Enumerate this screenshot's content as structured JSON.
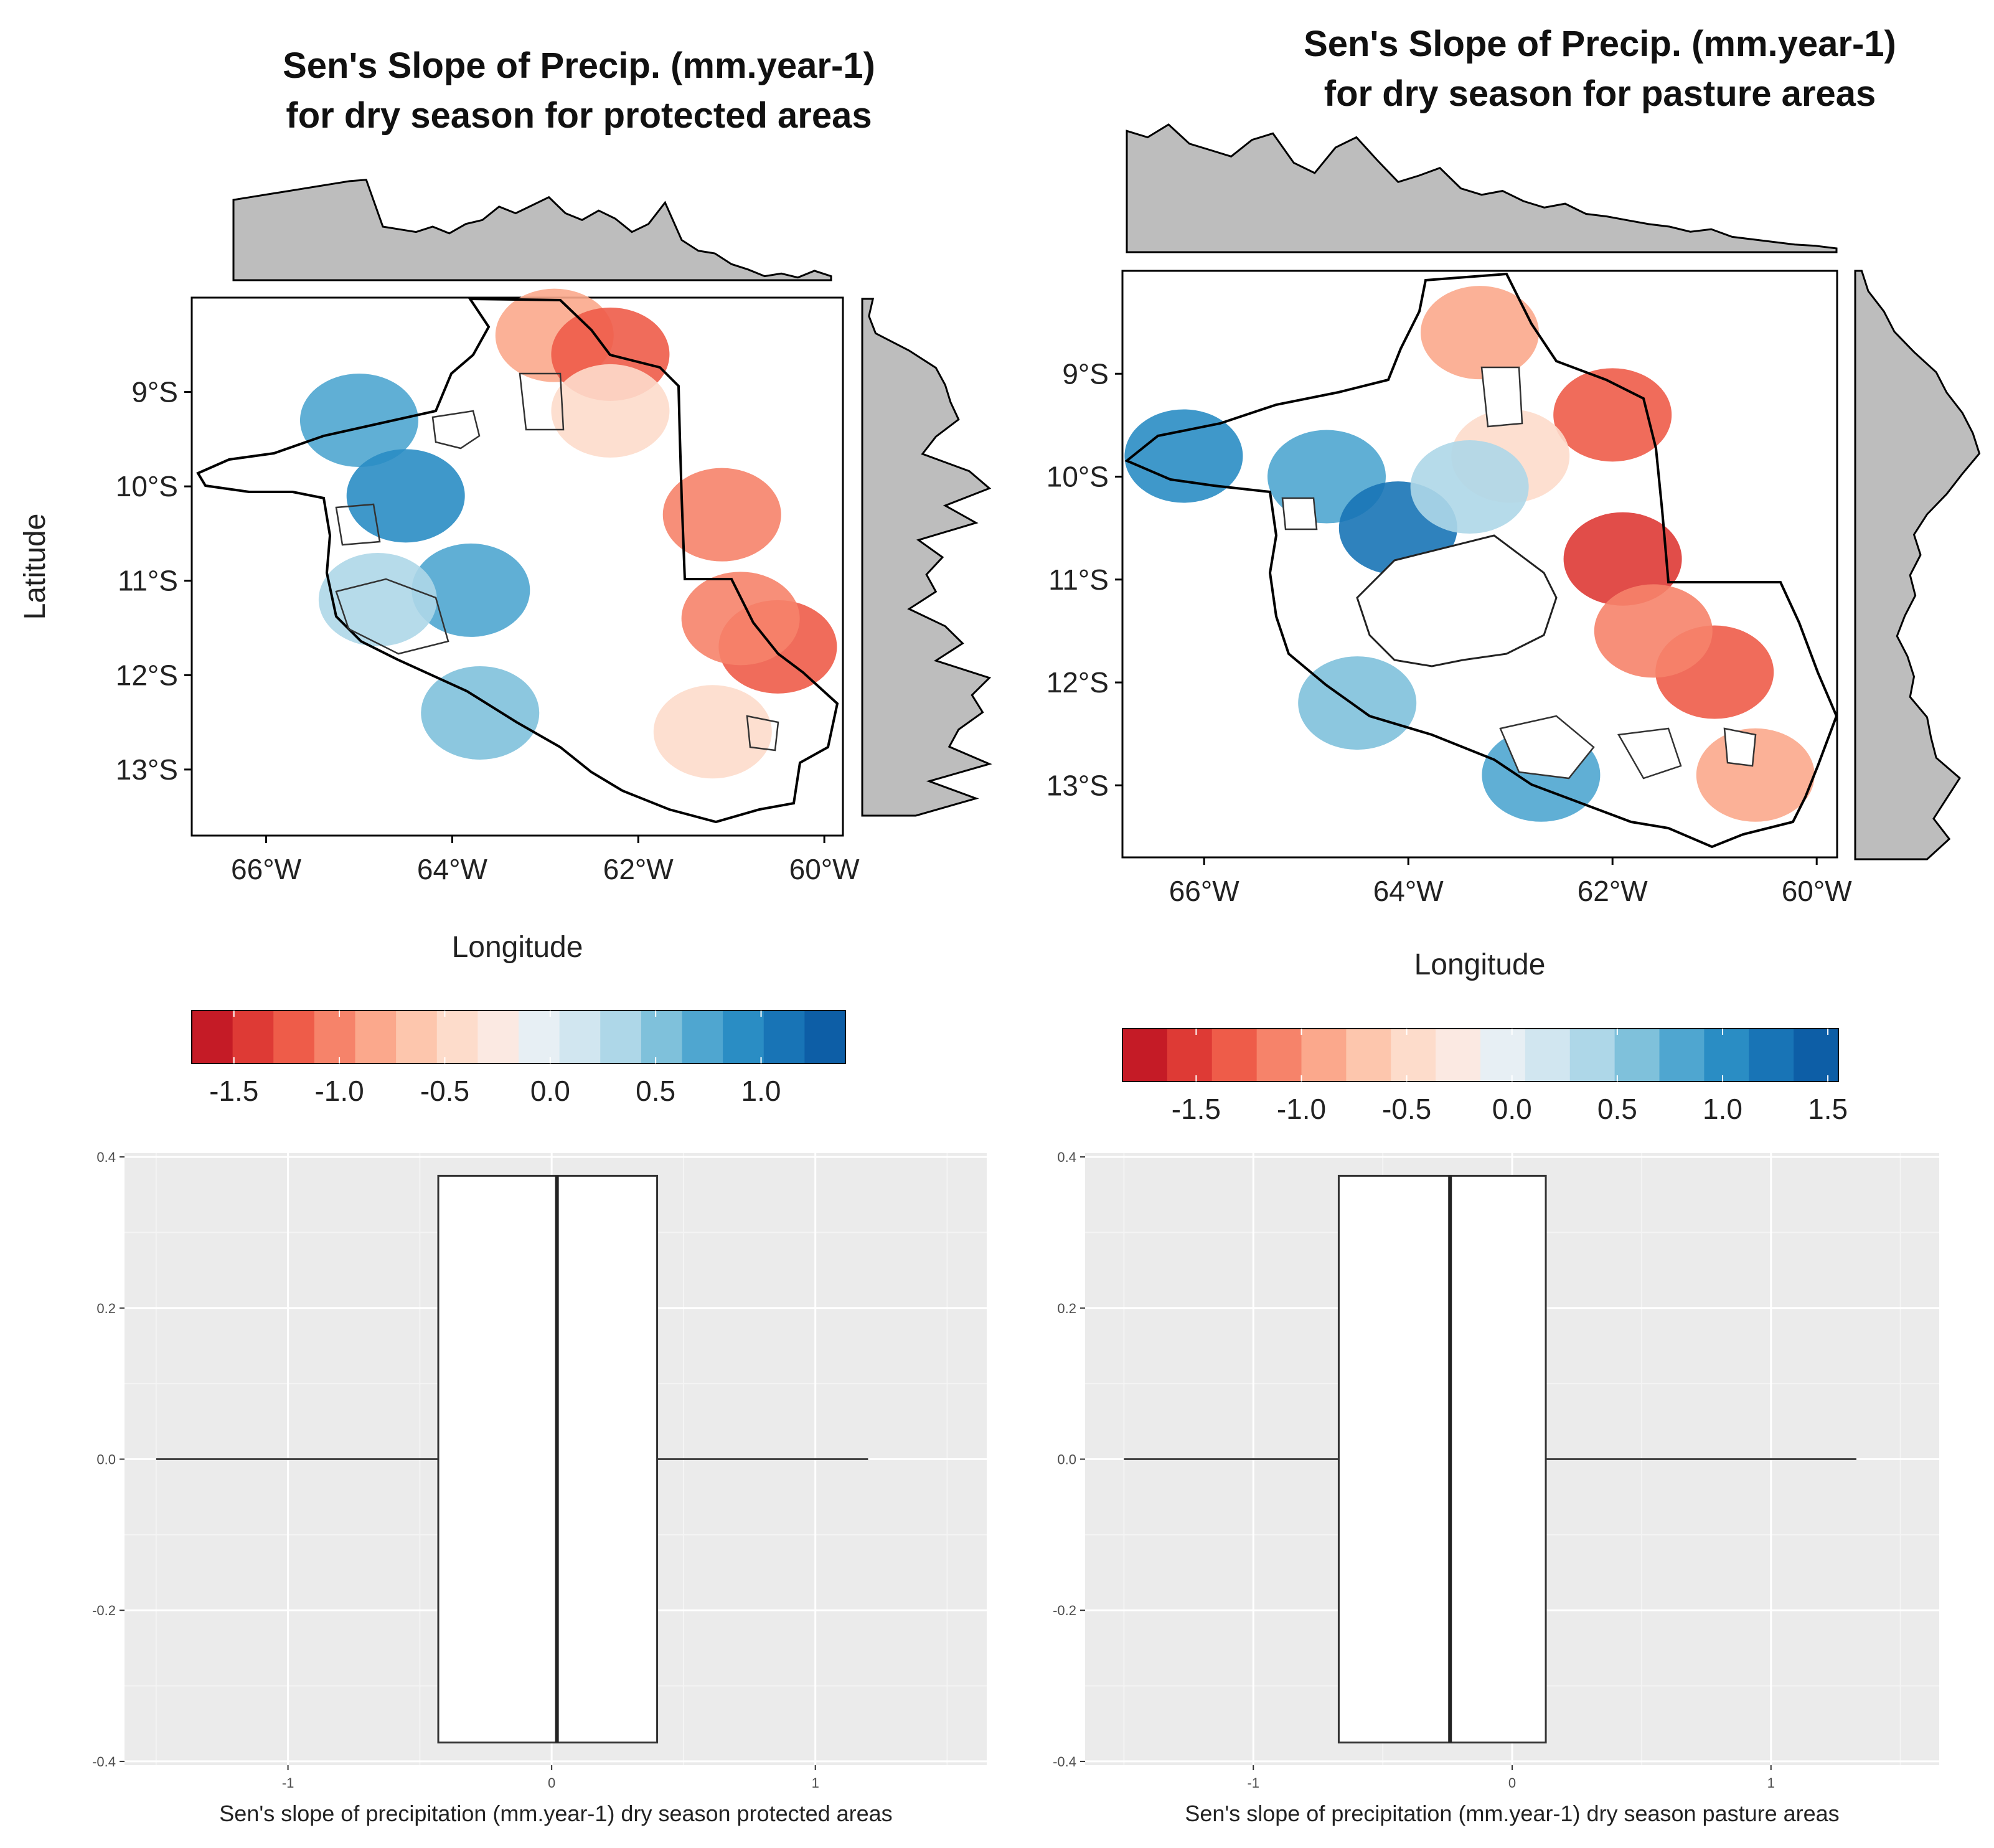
{
  "colors": {
    "scale": [
      "#c51b26",
      "#de3a35",
      "#ee5c49",
      "#f6836a",
      "#fba88c",
      "#fdc6ad",
      "#fddccb",
      "#fbe9e2",
      "#e7eff4",
      "#d1e6f0",
      "#aed7e8",
      "#7fc1db",
      "#4fa6d0",
      "#2a8dc4",
      "#1874b6",
      "#0d5ea6"
    ],
    "histogram_fill": "#bdbdbd",
    "boxplot_panel": "#ebebeb"
  },
  "chart_data": [
    {
      "type": "heatmap",
      "title": [
        "Sen's Slope of Precip. (mm.year-1)",
        "for dry season for protected areas"
      ],
      "xlabel": "Longitude",
      "ylabel": "Latitude",
      "x_ticks": [
        "66°W",
        "64°W",
        "62°W",
        "60°W"
      ],
      "x_tick_values": [
        -66,
        -64,
        -62,
        -60
      ],
      "y_ticks": [
        "9°S",
        "10°S",
        "11°S",
        "12°S",
        "13°S"
      ],
      "y_tick_values": [
        -9,
        -10,
        -11,
        -12,
        -13
      ],
      "xlim": [
        -66.8,
        -59.8
      ],
      "ylim": [
        -13.7,
        -8.0
      ],
      "colorbar_ticks": [
        "-1.5",
        "-1.0",
        "-0.5",
        "0.0",
        "0.5",
        "1.0"
      ],
      "colorbar_tick_values": [
        -1.5,
        -1.0,
        -0.5,
        0.0,
        0.5,
        1.0
      ],
      "colorbar_range": [
        -1.7,
        1.4
      ],
      "marginal_x_density": [
        0.6,
        0.62,
        0.64,
        0.66,
        0.68,
        0.7,
        0.72,
        0.74,
        0.75,
        0.4,
        0.38,
        0.36,
        0.4,
        0.35,
        0.42,
        0.45,
        0.55,
        0.5,
        0.56,
        0.62,
        0.5,
        0.45,
        0.52,
        0.46,
        0.36,
        0.42,
        0.58,
        0.3,
        0.22,
        0.2,
        0.12,
        0.08,
        0.03,
        0.05,
        0.02,
        0.07,
        0.03
      ],
      "marginal_y_density": [
        0.08,
        0.05,
        0.1,
        0.35,
        0.55,
        0.62,
        0.66,
        0.72,
        0.55,
        0.45,
        0.8,
        0.95,
        0.62,
        0.85,
        0.42,
        0.6,
        0.48,
        0.55,
        0.35,
        0.62,
        0.75,
        0.55,
        0.95,
        0.82,
        0.9,
        0.72,
        0.65,
        0.95,
        0.5,
        0.85,
        0.4
      ],
      "cell_colors": [
        {
          "color": "#fba88c",
          "approx_lon": -62.9,
          "approx_lat": -8.4
        },
        {
          "color": "#ee5c49",
          "approx_lon": -62.3,
          "approx_lat": -8.6
        },
        {
          "color": "#fddccb",
          "approx_lon": -62.3,
          "approx_lat": -9.2
        },
        {
          "color": "#f6836a",
          "approx_lon": -61.1,
          "approx_lat": -10.3
        },
        {
          "color": "#4fa6d0",
          "approx_lon": -65.0,
          "approx_lat": -9.3
        },
        {
          "color": "#2a8dc4",
          "approx_lon": -64.5,
          "approx_lat": -10.1
        },
        {
          "color": "#4fa6d0",
          "approx_lon": -63.8,
          "approx_lat": -11.1
        },
        {
          "color": "#aed7e8",
          "approx_lon": -64.8,
          "approx_lat": -11.2
        },
        {
          "color": "#7fc1db",
          "approx_lon": -63.7,
          "approx_lat": -12.4
        },
        {
          "color": "#ee5c49",
          "approx_lon": -60.5,
          "approx_lat": -11.7
        },
        {
          "color": "#f6836a",
          "approx_lon": -60.9,
          "approx_lat": -11.4
        },
        {
          "color": "#fddccb",
          "approx_lon": -61.2,
          "approx_lat": -12.6
        }
      ]
    },
    {
      "type": "heatmap",
      "title": [
        "Sen's Slope of Precip. (mm.year-1)",
        "for dry season for pasture areas"
      ],
      "xlabel": "Longitude",
      "x_ticks": [
        "66°W",
        "64°W",
        "62°W",
        "60°W"
      ],
      "x_tick_values": [
        -66,
        -64,
        -62,
        -60
      ],
      "y_ticks": [
        "9°S",
        "10°S",
        "11°S",
        "12°S",
        "13°S"
      ],
      "y_tick_values": [
        -9,
        -10,
        -11,
        -12,
        -13
      ],
      "xlim": [
        -66.8,
        -59.8
      ],
      "ylim": [
        -13.7,
        -8.0
      ],
      "colorbar_ticks": [
        "-1.5",
        "-1.0",
        "-0.5",
        "0.0",
        "0.5",
        "1.0",
        "1.5"
      ],
      "colorbar_tick_values": [
        -1.5,
        -1.0,
        -0.5,
        0.0,
        0.5,
        1.0,
        1.5
      ],
      "colorbar_range": [
        -1.85,
        1.55
      ],
      "marginal_x_density": [
        0.95,
        0.9,
        1.0,
        0.85,
        0.8,
        0.75,
        0.88,
        0.93,
        0.7,
        0.62,
        0.82,
        0.9,
        0.72,
        0.55,
        0.6,
        0.66,
        0.5,
        0.45,
        0.48,
        0.4,
        0.35,
        0.38,
        0.3,
        0.28,
        0.25,
        0.22,
        0.2,
        0.16,
        0.18,
        0.12,
        0.1,
        0.08,
        0.06,
        0.05,
        0.03
      ],
      "marginal_y_density": [
        0.05,
        0.1,
        0.22,
        0.3,
        0.45,
        0.62,
        0.7,
        0.82,
        0.9,
        0.95,
        0.82,
        0.7,
        0.55,
        0.45,
        0.5,
        0.42,
        0.46,
        0.38,
        0.32,
        0.4,
        0.45,
        0.42,
        0.55,
        0.58,
        0.62,
        0.8,
        0.7,
        0.6,
        0.72,
        0.55
      ],
      "cell_colors": [
        {
          "color": "#fba88c",
          "approx_lon": -63.3,
          "approx_lat": -8.6
        },
        {
          "color": "#ee5c49",
          "approx_lon": -62.0,
          "approx_lat": -9.4
        },
        {
          "color": "#fddccb",
          "approx_lon": -63.0,
          "approx_lat": -9.8
        },
        {
          "color": "#2a8dc4",
          "approx_lon": -66.2,
          "approx_lat": -9.8
        },
        {
          "color": "#4fa6d0",
          "approx_lon": -64.8,
          "approx_lat": -10.0
        },
        {
          "color": "#1874b6",
          "approx_lon": -64.1,
          "approx_lat": -10.5
        },
        {
          "color": "#aed7e8",
          "approx_lon": -63.4,
          "approx_lat": -10.1
        },
        {
          "color": "#de3a35",
          "approx_lon": -61.9,
          "approx_lat": -10.8
        },
        {
          "color": "#ee5c49",
          "approx_lon": -61.0,
          "approx_lat": -11.9
        },
        {
          "color": "#f6836a",
          "approx_lon": -61.6,
          "approx_lat": -11.5
        },
        {
          "color": "#fba88c",
          "approx_lon": -60.6,
          "approx_lat": -12.9
        },
        {
          "color": "#7fc1db",
          "approx_lon": -64.5,
          "approx_lat": -12.2
        },
        {
          "color": "#4fa6d0",
          "approx_lon": -62.7,
          "approx_lat": -12.9
        }
      ]
    },
    {
      "type": "box",
      "xlabel": "Sen's slope of precipitation (mm.year-1) dry season protected areas",
      "x_ticks": [
        "-1",
        "0",
        "1"
      ],
      "x_tick_values": [
        -1,
        0,
        1
      ],
      "y_ticks": [
        "0.4",
        "0.2",
        "0.0",
        "-0.2",
        "-0.4"
      ],
      "y_tick_values": [
        0.4,
        0.2,
        0.0,
        -0.2,
        -0.4
      ],
      "xlim": [
        -1.62,
        1.65
      ],
      "ylim": [
        -0.405,
        0.405
      ],
      "box": {
        "whisker_low": -1.5,
        "q1": -0.43,
        "median": 0.02,
        "q3": 0.4,
        "whisker_high": 1.2
      },
      "box_y_extent": [
        -0.375,
        0.375
      ]
    },
    {
      "type": "box",
      "xlabel": "Sen's slope of precipitation (mm.year-1) dry season pasture areas",
      "x_ticks": [
        "-1",
        "0",
        "1"
      ],
      "x_tick_values": [
        -1,
        0,
        1
      ],
      "y_ticks": [
        "0.4",
        "0.2",
        "0.0",
        "-0.2",
        "-0.4"
      ],
      "y_tick_values": [
        0.4,
        0.2,
        0.0,
        -0.2,
        -0.4
      ],
      "xlim": [
        -1.65,
        1.65
      ],
      "ylim": [
        -0.405,
        0.405
      ],
      "box": {
        "whisker_low": -1.5,
        "q1": -0.67,
        "median": -0.24,
        "q3": 0.13,
        "whisker_high": 1.33
      },
      "box_y_extent": [
        -0.375,
        0.375
      ]
    }
  ]
}
